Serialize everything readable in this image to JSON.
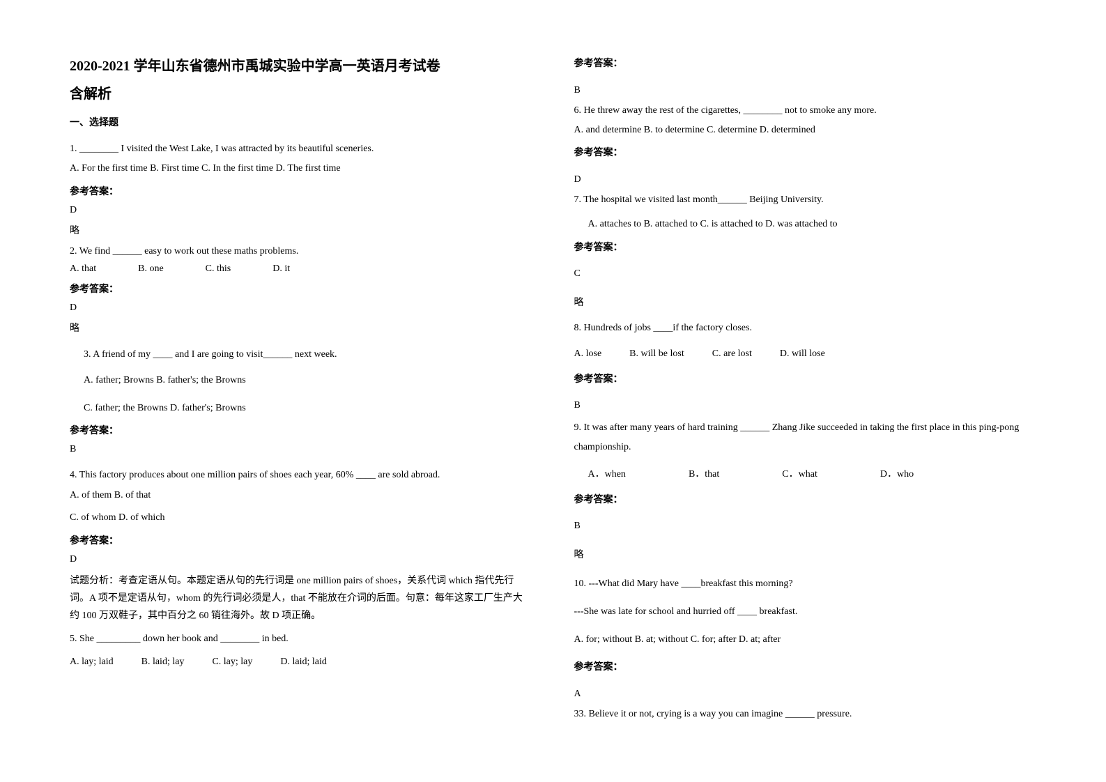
{
  "title": "2020-2021 学年山东省德州市禹城实验中学高一英语月考试卷",
  "subtitle": "含解析",
  "section1": "一、选择题",
  "q1": {
    "text": "1. ________ I visited the West Lake, I was attracted by its beautiful sceneries.",
    "options": "A. For the first time   B. First time   C. In the first time D. The first time",
    "answerLabel": "参考答案：",
    "answer": "D",
    "note": "略"
  },
  "q2": {
    "text": "2. We find ______ easy to work out these maths problems.",
    "optA": "A. that",
    "optB": "B. one",
    "optC": "C. this",
    "optD": "D. it",
    "answerLabel": "参考答案：",
    "answer": "D",
    "note": "略"
  },
  "q3": {
    "text": "3.  A friend of my ____ and I are going to visit______ next week.",
    "optAB": "A. father; Browns   B. father's; the Browns",
    "optCD": "C. father; the Browns  D. father's; Browns",
    "answerLabel": "参考答案：",
    "answer": "B"
  },
  "q4": {
    "text": "4. This factory produces about one million pairs of shoes each year, 60% ____ are sold abroad.",
    "optAB": "A. of them    B. of that",
    "optCD": "C. of whom    D. of which",
    "answerLabel": "参考答案：",
    "answer": "D",
    "explanation": "试题分析：考查定语从句。本题定语从句的先行词是 one million pairs of shoes，关系代词 which 指代先行词。A 项不是定语从句，whom 的先行词必须是人，that 不能放在介词的后面。句意：每年这家工厂生产大约 100 万双鞋子，其中百分之 60 销往海外。故 D 项正确。"
  },
  "q5": {
    "text": "5. She _________ down her book and ________ in bed.",
    "optA": "A. lay; laid",
    "optB": "B. laid; lay",
    "optC": "C. lay; lay",
    "optD": "D. laid; laid",
    "answerLabel": "参考答案：",
    "answer": "B"
  },
  "q6": {
    "text": "6. He threw away the rest of the cigarettes, ________ not to smoke any more.",
    "options": "   A. and determine   B. to determine   C. determine           D. determined",
    "answerLabel": "参考答案：",
    "answer": "D"
  },
  "q7": {
    "text": "7. The hospital we visited last month______ Beijing University.",
    "options": "A. attaches to  B. attached to   C. is attached to  D. was attached to",
    "answerLabel": "参考答案：",
    "answer": "C",
    "note": "略"
  },
  "q8": {
    "text": "8. Hundreds of jobs ____if the factory closes.",
    "optA": "A. lose",
    "optB": "B. will be lost",
    "optC": "C. are lost",
    "optD": "D. will lose",
    "answerLabel": "参考答案：",
    "answer": "B"
  },
  "q9": {
    "text": "9. It was after many years of hard training ______ Zhang Jike succeeded in taking the first place in this ping-pong championship.",
    "optA": "A．when",
    "optB": "B．that",
    "optC": "C．what",
    "optD": "D．who",
    "answerLabel": "参考答案：",
    "answer": "B",
    "note": "略"
  },
  "q10": {
    "text": "10. ---What did Mary have ____breakfast this morning?",
    "text2": "---She was late for school and hurried off ____ breakfast.",
    "options": "A. for; without  B. at; without  C. for; after  D. at; after",
    "answerLabel": "参考答案：",
    "answer": "A"
  },
  "q33": {
    "text": "33. Believe it or not, crying is a way you can imagine ______ pressure."
  }
}
